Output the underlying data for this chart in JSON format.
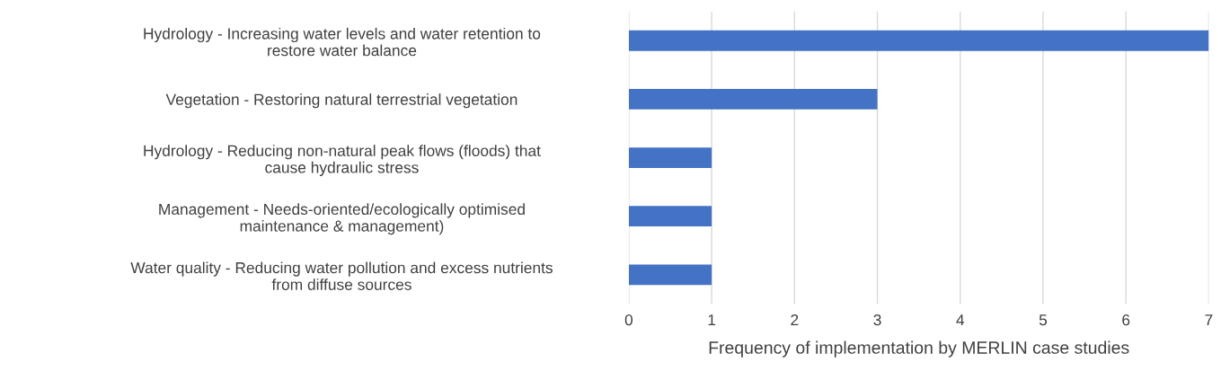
{
  "chart_data": {
    "type": "bar",
    "orientation": "horizontal",
    "categories": [
      "Hydrology - Increasing water levels and water retention to\nrestore water balance",
      "Vegetation - Restoring natural terrestrial vegetation",
      "Hydrology - Reducing non-natural peak flows (floods) that\ncause hydraulic stress",
      "Management - Needs-oriented/ecologically optimised\nmaintenance & management)",
      "Water quality - Reducing water pollution and excess nutrients\nfrom diffuse sources"
    ],
    "values": [
      7,
      3,
      1,
      1,
      1
    ],
    "color": "#4472c4",
    "xlabel": "Frequency of implementation by MERLIN case studies",
    "xlim": [
      0,
      7
    ],
    "xticks": [
      0,
      1,
      2,
      3,
      4,
      5,
      6,
      7
    ],
    "grid": "x"
  }
}
